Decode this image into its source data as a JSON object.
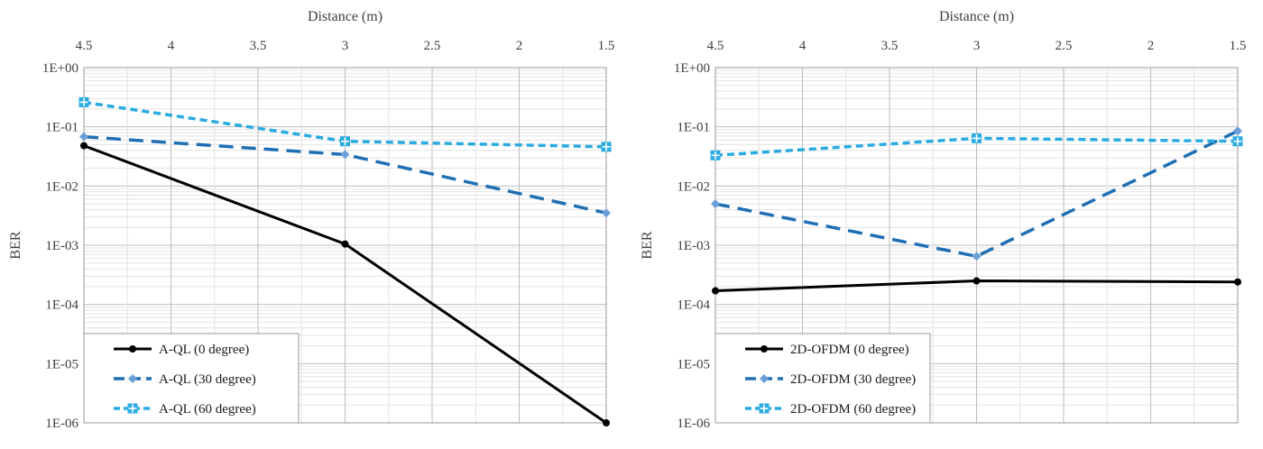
{
  "chart_data": [
    {
      "type": "line",
      "title": "",
      "xlabel": "Distance (m)",
      "ylabel": "BER",
      "yscale": "log",
      "ylim": [
        1e-06,
        1
      ],
      "xlim": [
        4.5,
        1.5
      ],
      "x_reversed": true,
      "x_axis_position": "top",
      "legend_position": "bottom-left",
      "grid": true,
      "x_ticks": [
        4.5,
        4,
        3.5,
        3,
        2.5,
        2,
        1.5
      ],
      "x_tick_labels": [
        "4.5",
        "4",
        "3.5",
        "3",
        "2.5",
        "2",
        "1.5"
      ],
      "y_tick_values": [
        1,
        0.1,
        0.01,
        0.001,
        0.0001,
        1e-05,
        1e-06
      ],
      "y_tick_labels": [
        "1E+00",
        "1E-01",
        "1E-02",
        "1E-03",
        "1E-04",
        "1E-05",
        "1E-06"
      ],
      "series": [
        {
          "name": "A-QL (0 degree)",
          "x": [
            4.5,
            3,
            1.5
          ],
          "values": [
            0.048,
            0.00105,
            1e-06
          ],
          "color": "#000000",
          "dash": "solid",
          "marker": "circle"
        },
        {
          "name": "A-QL (30 degree)",
          "x": [
            4.5,
            3,
            1.5
          ],
          "values": [
            0.068,
            0.034,
            0.0035
          ],
          "color": "#1f6fb5",
          "dash": "long-dash",
          "marker": "diamond"
        },
        {
          "name": "A-QL (60 degree)",
          "x": [
            4.5,
            3,
            1.5
          ],
          "values": [
            0.26,
            0.057,
            0.046
          ],
          "color": "#29abe2",
          "dash": "short-dash",
          "marker": "square-plus"
        }
      ]
    },
    {
      "type": "line",
      "title": "",
      "xlabel": "Distance (m)",
      "ylabel": "BER",
      "yscale": "log",
      "ylim": [
        1e-06,
        1
      ],
      "xlim": [
        4.5,
        1.5
      ],
      "x_reversed": true,
      "x_axis_position": "top",
      "legend_position": "bottom-left",
      "grid": true,
      "x_ticks": [
        4.5,
        4,
        3.5,
        3,
        2.5,
        2,
        1.5
      ],
      "x_tick_labels": [
        "4.5",
        "4",
        "3.5",
        "3",
        "2.5",
        "2",
        "1.5"
      ],
      "y_tick_values": [
        1,
        0.1,
        0.01,
        0.001,
        0.0001,
        1e-05,
        1e-06
      ],
      "y_tick_labels": [
        "1E+00",
        "1E-01",
        "1E-02",
        "1E-03",
        "1E-04",
        "1E-05",
        "1E-06"
      ],
      "series": [
        {
          "name": "2D-OFDM (0 degree)",
          "x": [
            4.5,
            3,
            1.5
          ],
          "values": [
            0.00017,
            0.00025,
            0.00024
          ],
          "color": "#000000",
          "dash": "solid",
          "marker": "circle"
        },
        {
          "name": "2D-OFDM (30 degree)",
          "x": [
            4.5,
            3,
            1.5
          ],
          "values": [
            0.005,
            0.00065,
            0.085
          ],
          "color": "#1f6fb5",
          "dash": "long-dash",
          "marker": "diamond"
        },
        {
          "name": "2D-OFDM (60 degree)",
          "x": [
            4.5,
            3,
            1.5
          ],
          "values": [
            0.033,
            0.064,
            0.057
          ],
          "color": "#29abe2",
          "dash": "short-dash",
          "marker": "square-plus"
        }
      ]
    }
  ]
}
